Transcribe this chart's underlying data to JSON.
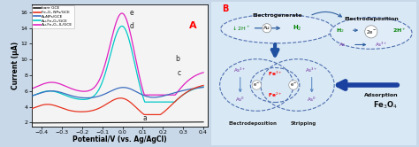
{
  "legend_labels": [
    "bare GCE",
    "Fe₃O₄ NPs/GCE",
    "AuNPs/GCE",
    "Au-Fe₃O₄/GCE",
    "Au-Fe₃O₄-IL/GCE"
  ],
  "legend_colors": [
    "#1a1a1a",
    "#e8321e",
    "#3b6dc0",
    "#00c8c8",
    "#e020c0"
  ],
  "xlabel": "Potential/V (vs. Ag/AgCl)",
  "ylabel": "Current (μA)",
  "label_A": "A",
  "label_B": "B",
  "xlim": [
    -0.45,
    0.42
  ],
  "ylim": [
    1.5,
    17
  ],
  "yticks": [
    2,
    4,
    6,
    8,
    10,
    12,
    14,
    16
  ],
  "fig_bg": "#c8d8e8",
  "plot_bg": "#f4f4f4",
  "diag_bg": "#dce8f2",
  "diag_outer_edge": "#7090b0"
}
